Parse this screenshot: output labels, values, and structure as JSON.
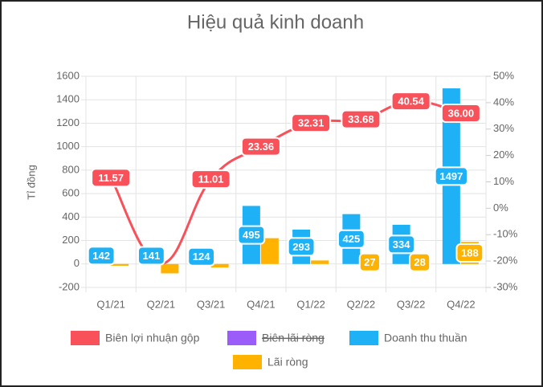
{
  "chart_data": {
    "type": "bar",
    "title": "Hiệu quả kinh doanh",
    "y_label": "Tỉ đồng",
    "categories": [
      "Q1/21",
      "Q2/21",
      "Q3/21",
      "Q4/21",
      "Q1/22",
      "Q2/22",
      "Q3/22",
      "Q4/22"
    ],
    "series": [
      {
        "name": "Biên lợi nhuận gộp",
        "type": "line",
        "axis": "y2",
        "color": "#f9515a",
        "values": [
          11.57,
          -21,
          11.01,
          23.36,
          32.31,
          33.68,
          40.54,
          36
        ],
        "value_labels": [
          "11.57",
          null,
          "11.01",
          "23.36",
          "32.31",
          "33.68",
          "40.54",
          "36.00"
        ]
      },
      {
        "name": "Biên lãi ròng",
        "type": "line",
        "axis": "y2",
        "color": "#9b5cfa",
        "hidden": true
      },
      {
        "name": "Doanh thu thuần",
        "color": "#1fb1f6",
        "values": [
          142,
          141,
          124,
          495,
          293,
          425,
          334,
          1497
        ]
      },
      {
        "name": "Lãi ròng",
        "color": "#ffb300",
        "values": [
          -15,
          -80,
          -30,
          220,
          30,
          27,
          28,
          188
        ],
        "value_labels": [
          null,
          null,
          null,
          null,
          null,
          "27",
          "28",
          "188"
        ]
      }
    ],
    "ylim": [
      -200,
      1600
    ],
    "yticks": [
      -200,
      0,
      200,
      400,
      600,
      800,
      1000,
      1200,
      1400,
      1600
    ],
    "y2lim": [
      -30,
      50
    ],
    "y2ticks": [
      {
        "value": -30,
        "label": "-30%"
      },
      {
        "value": -20,
        "label": "-20%"
      },
      {
        "value": -10,
        "label": "-10%"
      },
      {
        "value": 0,
        "label": "0%"
      },
      {
        "value": 10,
        "label": "10%"
      },
      {
        "value": 20,
        "label": "20%"
      },
      {
        "value": 30,
        "label": "30%"
      },
      {
        "value": 40,
        "label": "40%"
      },
      {
        "value": 50,
        "label": "50%"
      }
    ],
    "grid": true
  }
}
